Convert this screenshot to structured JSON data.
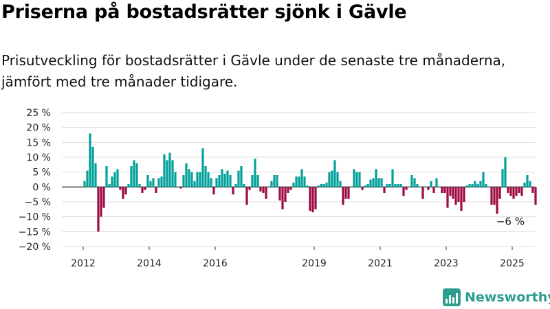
{
  "title": "Priserna på bostadsrätter sjönk i Gävle",
  "subtitle": "Prisutveckling för bostadsrätter i Gävle under de senaste tre månaderna, jämfört med tre månader tidigare.",
  "brand": {
    "name": "Newsworthy",
    "icon": "newsworthy-logo-icon",
    "color": "#2a9d8f"
  },
  "colors": {
    "positive": "#00a19a",
    "negative": "#9e0a43",
    "grid": "#dddddd",
    "zero_line": "#333333"
  },
  "chart_data": {
    "type": "bar",
    "title": "Priserna på bostadsrätter sjönk i Gävle",
    "ylim": [
      -20,
      25
    ],
    "y_ticks": [
      25,
      20,
      15,
      10,
      5,
      0,
      -5,
      -10,
      -15,
      -20
    ],
    "y_tick_labels": [
      "25 %",
      "20 %",
      "15 %",
      "10 %",
      "5 %",
      "0 %",
      "−5 %",
      "−10 %",
      "−15 %",
      "−20 %"
    ],
    "x_ticks": [
      2012,
      2014,
      2016,
      2019,
      2021,
      2023,
      2025
    ],
    "x_tick_labels": [
      "2012",
      "2014",
      "2016",
      "2019",
      "2021",
      "2023",
      "2025"
    ],
    "x_unit": "month",
    "start": "2012-01",
    "grid": true,
    "annotation": {
      "text": "−6 %",
      "x": "2024-12",
      "y": -6
    },
    "values": [
      2,
      5.5,
      18,
      13.5,
      8,
      -15,
      -10,
      -7,
      7,
      1,
      3.5,
      5,
      6,
      -1,
      -4,
      -2.5,
      1,
      7,
      9,
      8,
      1,
      -2,
      -1,
      4,
      2,
      3,
      -2,
      3,
      3.5,
      11,
      9,
      11.5,
      9,
      5,
      0,
      -0.5,
      4,
      8,
      6,
      5,
      2,
      5,
      5,
      13,
      7,
      5,
      3,
      -2.5,
      3,
      4,
      6,
      4.5,
      5.5,
      4,
      -2.5,
      1,
      5.5,
      7,
      1,
      -6,
      -1,
      4,
      9.5,
      4,
      -1.5,
      -2,
      -4,
      0,
      2,
      4,
      4,
      -4.5,
      -7.5,
      -5,
      -2,
      -1,
      1.5,
      3.5,
      3.5,
      6,
      3.5,
      0.5,
      -8,
      -8.5,
      -7.5,
      0.5,
      1,
      1,
      1.5,
      5,
      5.5,
      9,
      5,
      2,
      -6,
      -4,
      -4,
      0,
      6,
      5,
      5,
      -1,
      0.5,
      1,
      2.5,
      3,
      6,
      3,
      3,
      -2,
      1,
      1,
      6,
      1,
      1,
      1,
      -3,
      -1,
      0,
      4,
      3,
      1,
      0,
      -4,
      0,
      -1,
      2,
      -2,
      3,
      0,
      -2,
      -2,
      -7,
      -3,
      -4,
      -6,
      -5,
      -8,
      -5,
      0.5,
      1,
      1,
      2,
      1,
      2,
      5,
      1,
      0,
      -6,
      -6,
      -9,
      -4,
      6,
      10,
      -2,
      -3,
      -4,
      -3,
      -2,
      -3,
      1.5,
      4,
      2,
      -2,
      -6
    ]
  }
}
